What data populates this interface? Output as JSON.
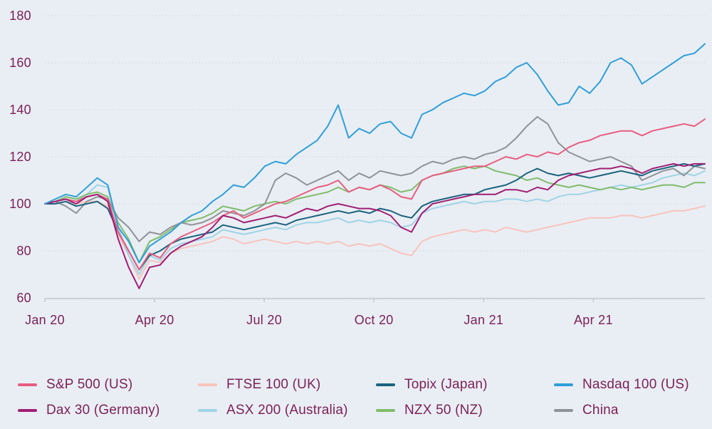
{
  "colors": {
    "background": "#e9eef4",
    "text": "#7c2159",
    "axis": "#c3cad4",
    "grid": "#d6cfd7"
  },
  "chart_data": {
    "type": "line",
    "x_span_months": 18.05,
    "x_ticks": [
      {
        "label": "Jan 20",
        "month": 0
      },
      {
        "label": "Apr 20",
        "month": 3
      },
      {
        "label": "Jul 20",
        "month": 6
      },
      {
        "label": "Oct 20",
        "month": 9
      },
      {
        "label": "Jan 21",
        "month": 12
      },
      {
        "label": "Apr 21",
        "month": 15
      }
    ],
    "y_ticks": [
      180,
      160,
      140,
      120,
      100,
      80,
      60
    ],
    "ylim": [
      60,
      180
    ],
    "grid": "horizontal-dotted",
    "legend_position": "bottom",
    "draw_order": [
      1,
      5,
      6,
      7,
      2,
      0,
      4,
      3
    ],
    "series": [
      {
        "name": "S&P 500 (US)",
        "color": "#e85d80",
        "values": [
          100,
          101,
          102,
          101,
          103,
          104,
          102,
          88,
          80,
          72,
          79,
          77,
          83,
          86,
          88,
          90,
          92,
          95,
          97,
          94,
          96,
          98,
          100,
          101,
          103,
          105,
          107,
          108,
          110,
          105,
          107,
          106,
          108,
          106,
          103,
          102,
          110,
          112,
          113,
          114,
          115,
          116,
          116,
          118,
          120,
          119,
          121,
          120,
          122,
          121,
          124,
          126,
          127,
          129,
          130,
          131,
          131,
          129,
          131,
          132,
          133,
          134,
          133,
          136
        ]
      },
      {
        "name": "FTSE 100 (UK)",
        "color": "#f8c3bc",
        "values": [
          100,
          100,
          101,
          100,
          101,
          101,
          99,
          87,
          78,
          68,
          76,
          75,
          79,
          81,
          82,
          83,
          84,
          86,
          85,
          83,
          84,
          85,
          84,
          83,
          84,
          83,
          84,
          83,
          84,
          82,
          83,
          82,
          83,
          81,
          79,
          78,
          84,
          86,
          87,
          88,
          89,
          88,
          89,
          88,
          90,
          89,
          88,
          89,
          90,
          91,
          92,
          93,
          94,
          94,
          94,
          95,
          95,
          94,
          95,
          96,
          97,
          97,
          98,
          99
        ]
      },
      {
        "name": "Topix (Japan)",
        "color": "#1a637f",
        "values": [
          100,
          100,
          101,
          99,
          100,
          101,
          98,
          88,
          80,
          72,
          78,
          80,
          83,
          85,
          86,
          87,
          88,
          91,
          90,
          89,
          90,
          91,
          92,
          91,
          93,
          94,
          95,
          96,
          97,
          96,
          97,
          96,
          98,
          97,
          95,
          94,
          99,
          101,
          102,
          103,
          104,
          104,
          106,
          107,
          108,
          110,
          113,
          115,
          113,
          112,
          113,
          112,
          111,
          112,
          113,
          114,
          113,
          112,
          114,
          115,
          116,
          117,
          116,
          117
        ]
      },
      {
        "name": "Nasdaq 100 (US)",
        "color": "#2f9fd8",
        "values": [
          100,
          102,
          104,
          103,
          107,
          111,
          108,
          90,
          84,
          75,
          82,
          85,
          88,
          92,
          95,
          97,
          101,
          104,
          108,
          107,
          111,
          116,
          118,
          117,
          121,
          124,
          127,
          133,
          142,
          128,
          132,
          130,
          134,
          135,
          130,
          128,
          138,
          140,
          143,
          145,
          147,
          146,
          148,
          152,
          154,
          158,
          160,
          155,
          148,
          142,
          143,
          150,
          147,
          152,
          160,
          162,
          159,
          151,
          154,
          157,
          160,
          163,
          164,
          168
        ]
      },
      {
        "name": "Dax 30 (Germany)",
        "color": "#a11e74",
        "values": [
          100,
          101,
          102,
          100,
          103,
          104,
          101,
          85,
          73,
          64,
          73,
          74,
          79,
          82,
          84,
          86,
          90,
          95,
          94,
          92,
          93,
          94,
          95,
          94,
          96,
          98,
          97,
          99,
          100,
          99,
          98,
          98,
          97,
          95,
          90,
          88,
          96,
          100,
          101,
          102,
          103,
          104,
          104,
          104,
          106,
          106,
          105,
          107,
          106,
          110,
          112,
          113,
          114,
          115,
          115,
          116,
          115,
          113,
          115,
          116,
          117,
          116,
          117,
          117
        ]
      },
      {
        "name": "ASX 200 (Australia)",
        "color": "#9fd4e6",
        "values": [
          100,
          101,
          102,
          101,
          104,
          108,
          107,
          90,
          78,
          70,
          78,
          76,
          81,
          83,
          84,
          85,
          86,
          89,
          88,
          87,
          88,
          89,
          90,
          89,
          91,
          92,
          92,
          93,
          94,
          92,
          93,
          92,
          93,
          92,
          90,
          91,
          96,
          98,
          99,
          100,
          101,
          100,
          101,
          101,
          102,
          102,
          101,
          102,
          101,
          103,
          104,
          104,
          105,
          106,
          107,
          108,
          107,
          108,
          109,
          111,
          112,
          113,
          112,
          114
        ]
      },
      {
        "name": "NZX 50 (NZ)",
        "color": "#7fbc6c",
        "values": [
          100,
          101,
          103,
          102,
          104,
          105,
          103,
          92,
          85,
          75,
          84,
          86,
          89,
          92,
          93,
          94,
          96,
          99,
          98,
          97,
          99,
          100,
          101,
          100,
          102,
          103,
          104,
          105,
          107,
          105,
          107,
          106,
          108,
          107,
          105,
          106,
          110,
          112,
          113,
          115,
          116,
          115,
          116,
          114,
          113,
          112,
          110,
          111,
          109,
          108,
          107,
          108,
          107,
          106,
          107,
          106,
          107,
          106,
          107,
          108,
          108,
          107,
          109,
          109
        ]
      },
      {
        "name": "China",
        "color": "#8f9296",
        "values": [
          100,
          101,
          99,
          96,
          101,
          103,
          102,
          94,
          90,
          84,
          88,
          87,
          90,
          92,
          91,
          92,
          94,
          97,
          96,
          95,
          97,
          100,
          110,
          113,
          111,
          108,
          110,
          112,
          114,
          110,
          113,
          111,
          114,
          113,
          112,
          113,
          116,
          118,
          117,
          119,
          120,
          119,
          121,
          122,
          124,
          128,
          133,
          137,
          134,
          126,
          122,
          120,
          118,
          119,
          120,
          118,
          116,
          110,
          112,
          114,
          115,
          112,
          116,
          115
        ]
      }
    ]
  }
}
